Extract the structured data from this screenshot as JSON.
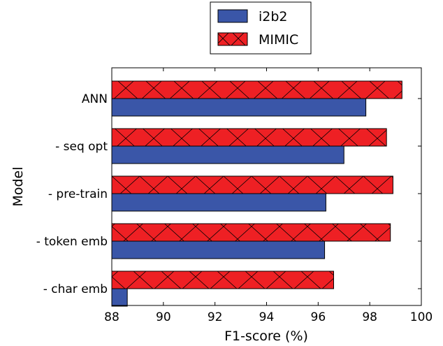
{
  "chart_data": {
    "type": "bar",
    "orientation": "horizontal",
    "title": "",
    "xlabel": "F1-score (%)",
    "ylabel": "Model",
    "xlim": [
      88,
      100
    ],
    "xticks": [
      "88",
      "90",
      "92",
      "94",
      "96",
      "98",
      "100"
    ],
    "categories": [
      "ANN",
      "- seq opt",
      "- pre-train",
      "- token emb",
      "- char emb"
    ],
    "series": [
      {
        "name": "i2b2",
        "values": [
          97.85,
          97.0,
          96.3,
          96.25,
          88.6
        ],
        "color": "#3a56a8",
        "hatch": "none"
      },
      {
        "name": "MIMIC",
        "values": [
          99.25,
          98.65,
          98.9,
          98.8,
          96.6
        ],
        "color": "#ee2024",
        "hatch": "x"
      }
    ],
    "legend_position": "top-center",
    "grid": false
  }
}
